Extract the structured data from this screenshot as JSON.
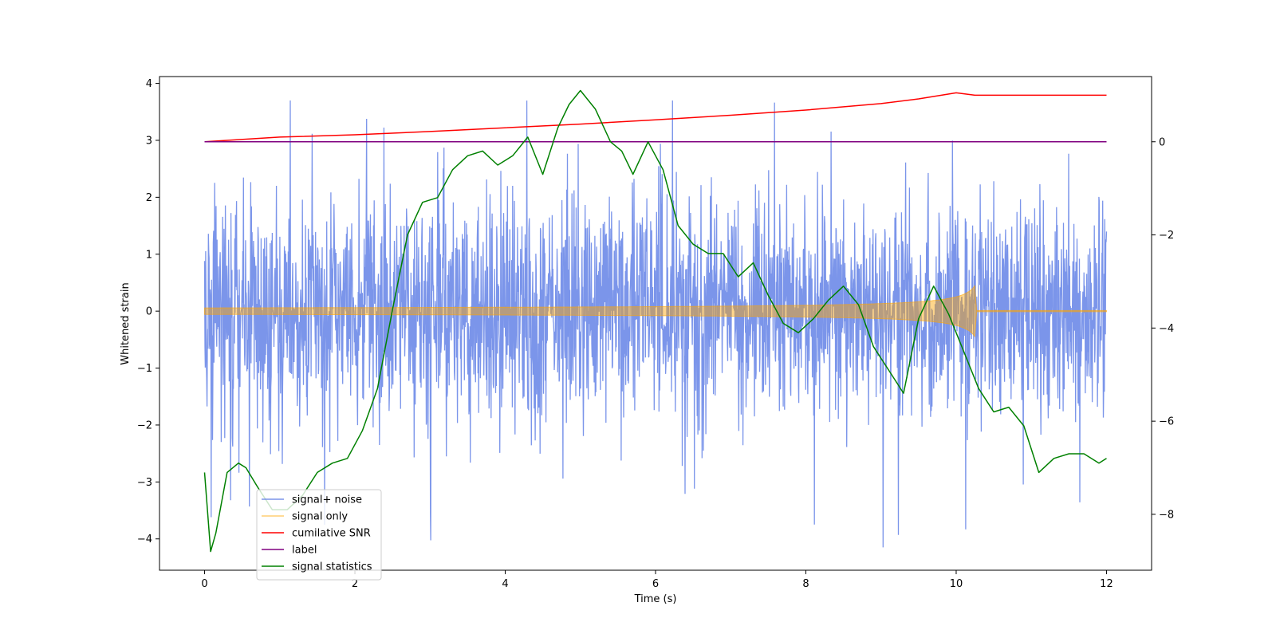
{
  "chart_data": {
    "type": "line",
    "title": "",
    "xlabel": "Time (s)",
    "ylabel": "Whitened strain",
    "y2label": "",
    "xlim": [
      -0.6,
      12.6
    ],
    "ylim": [
      -4.55,
      4.12
    ],
    "y2lim": [
      -9.2,
      1.4
    ],
    "xticks": [
      0,
      2,
      4,
      6,
      8,
      10,
      12
    ],
    "yticks": [
      -4,
      -3,
      -2,
      -1,
      0,
      1,
      2,
      3,
      4
    ],
    "y2ticks": [
      -8,
      -6,
      -4,
      -2,
      0
    ],
    "xtick_labels": [
      "0",
      "2",
      "4",
      "6",
      "8",
      "10",
      "12"
    ],
    "ytick_labels": [
      "−4",
      "−3",
      "−2",
      "−1",
      "0",
      "1",
      "2",
      "3",
      "4"
    ],
    "y2tick_labels": [
      "−8",
      "−6",
      "−4",
      "−2",
      "0"
    ],
    "legend_position": "lower-left",
    "series": [
      {
        "name": "signal+ noise",
        "color": "#6482e6",
        "axis": "left",
        "kind": "noise",
        "t_start": 0,
        "t_end": 12,
        "typical_amplitude": 1.0,
        "peak_max": 3.7,
        "peak_min": -4.15
      },
      {
        "name": "signal only",
        "color": "#ffa500",
        "axis": "left",
        "kind": "chirp",
        "t_start": 0,
        "t_end": 12,
        "t_merger": 10.25,
        "amplitude_start": 0.02,
        "amplitude_merger": 0.45
      },
      {
        "name": "cumilative SNR",
        "color": "#ff0000",
        "axis": "right",
        "x": [
          0,
          1,
          2,
          3,
          4,
          5,
          6,
          7,
          8,
          9,
          9.5,
          10,
          10.25,
          12
        ],
        "y": [
          0.0,
          0.1,
          0.15,
          0.22,
          0.3,
          0.38,
          0.47,
          0.57,
          0.68,
          0.82,
          0.92,
          1.05,
          1.0,
          1.0
        ]
      },
      {
        "name": "label",
        "color": "#800080",
        "axis": "right",
        "x": [
          0,
          12
        ],
        "y": [
          0,
          0
        ]
      },
      {
        "name": "signal statistics",
        "color": "#008000",
        "axis": "right",
        "x": [
          0,
          0.08,
          0.15,
          0.3,
          0.45,
          0.55,
          0.7,
          0.9,
          1.1,
          1.3,
          1.5,
          1.7,
          1.9,
          2.1,
          2.3,
          2.5,
          2.7,
          2.9,
          3.1,
          3.3,
          3.5,
          3.7,
          3.9,
          4.1,
          4.3,
          4.5,
          4.7,
          4.85,
          5.0,
          5.2,
          5.4,
          5.55,
          5.7,
          5.9,
          6.1,
          6.3,
          6.5,
          6.7,
          6.9,
          7.1,
          7.3,
          7.5,
          7.7,
          7.9,
          8.1,
          8.3,
          8.5,
          8.7,
          8.9,
          9.1,
          9.3,
          9.5,
          9.7,
          9.9,
          10.1,
          10.3,
          10.5,
          10.7,
          10.9,
          11.1,
          11.3,
          11.5,
          11.7,
          11.9,
          12.0
        ],
        "y": [
          -7.1,
          -8.8,
          -8.4,
          -7.1,
          -6.9,
          -7.0,
          -7.4,
          -7.9,
          -7.9,
          -7.6,
          -7.1,
          -6.9,
          -6.8,
          -6.2,
          -5.3,
          -3.6,
          -2.0,
          -1.3,
          -1.2,
          -0.6,
          -0.3,
          -0.2,
          -0.5,
          -0.3,
          0.1,
          -0.7,
          0.3,
          0.8,
          1.1,
          0.7,
          0.0,
          -0.2,
          -0.7,
          0.0,
          -0.6,
          -1.8,
          -2.2,
          -2.4,
          -2.4,
          -2.9,
          -2.6,
          -3.3,
          -3.9,
          -4.1,
          -3.8,
          -3.4,
          -3.1,
          -3.5,
          -4.4,
          -4.9,
          -5.4,
          -3.8,
          -3.1,
          -3.7,
          -4.5,
          -5.3,
          -5.8,
          -5.7,
          -6.1,
          -7.1,
          -6.8,
          -6.7,
          -6.7,
          -6.9,
          -6.8
        ]
      }
    ]
  }
}
